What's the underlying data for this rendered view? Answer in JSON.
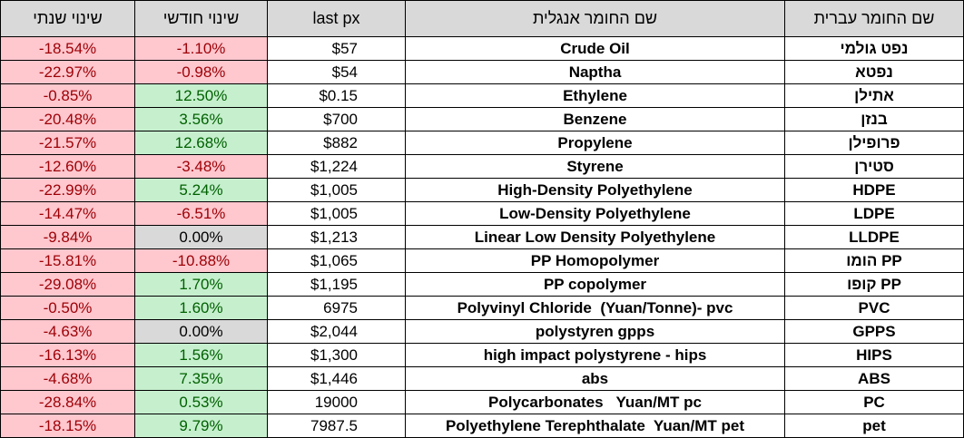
{
  "header": {
    "yearly_change": "שינוי שנתי",
    "monthly_change": "שינוי חודשי",
    "last_px": "last px",
    "english_name": "שם החומר אנגלית",
    "hebrew_name": "שם החומר עברית"
  },
  "colors": {
    "negative_fill": "#ffc7ce",
    "negative_text": "#9c0006",
    "positive_fill": "#c6efce",
    "positive_text": "#006100",
    "neutral_fill": "#d9d9d9",
    "header_fill": "#d9d9d9"
  },
  "rows": [
    {
      "yearly": "-18.54%",
      "monthly": "-1.10%",
      "monthly_tone": "neg",
      "px": "$57",
      "en": "Crude Oil",
      "he": "נפט גולמי"
    },
    {
      "yearly": "-22.97%",
      "monthly": "-0.98%",
      "monthly_tone": "neg",
      "px": "$54",
      "en": "Naptha",
      "he": "נפטא"
    },
    {
      "yearly": "-0.85%",
      "monthly": "12.50%",
      "monthly_tone": "pos",
      "px": "$0.15",
      "en": "Ethylene",
      "he": "אתילן"
    },
    {
      "yearly": "-20.48%",
      "monthly": "3.56%",
      "monthly_tone": "pos",
      "px": "$700",
      "en": "Benzene",
      "he": "בנזן"
    },
    {
      "yearly": "-21.57%",
      "monthly": "12.68%",
      "monthly_tone": "pos",
      "px": "$882",
      "en": "Propylene",
      "he": "פרופילן"
    },
    {
      "yearly": "-12.60%",
      "monthly": "-3.48%",
      "monthly_tone": "neg",
      "px": "$1,224",
      "en": "Styrene",
      "he": "סטירן"
    },
    {
      "yearly": "-22.99%",
      "monthly": "5.24%",
      "monthly_tone": "pos",
      "px": "$1,005",
      "en": "High-Density Polyethylene",
      "he": "HDPE"
    },
    {
      "yearly": "-14.47%",
      "monthly": "-6.51%",
      "monthly_tone": "neg",
      "px": "$1,005",
      "en": "Low-Density Polyethylene",
      "he": "LDPE"
    },
    {
      "yearly": "-9.84%",
      "monthly": "0.00%",
      "monthly_tone": "zero",
      "px": "$1,213",
      "en": "Linear Low Density Polyethylene",
      "he": "LLDPE"
    },
    {
      "yearly": "-15.81%",
      "monthly": "-10.88%",
      "monthly_tone": "neg",
      "px": "$1,065",
      "en": "PP Homopolymer",
      "he": "הומו PP"
    },
    {
      "yearly": "-29.08%",
      "monthly": "1.70%",
      "monthly_tone": "pos",
      "px": "$1,195",
      "en": "PP copolymer",
      "he": "קופו PP"
    },
    {
      "yearly": "-0.50%",
      "monthly": "1.60%",
      "monthly_tone": "pos",
      "px": "6975",
      "en": "Polyvinyl Chloride  (Yuan/Tonne)- pvc",
      "he": "PVC"
    },
    {
      "yearly": "-4.63%",
      "monthly": "0.00%",
      "monthly_tone": "zero",
      "px": "$2,044",
      "en": "polystyren gpps",
      "he": "GPPS"
    },
    {
      "yearly": "-16.13%",
      "monthly": "1.56%",
      "monthly_tone": "pos",
      "px": "$1,300",
      "en": "high impact polystyrene - hips",
      "he": "HIPS"
    },
    {
      "yearly": "-4.68%",
      "monthly": "7.35%",
      "monthly_tone": "pos",
      "px": "$1,446",
      "en": "abs",
      "he": "ABS"
    },
    {
      "yearly": "-28.84%",
      "monthly": "0.53%",
      "monthly_tone": "pos",
      "px": "19000",
      "en": "Polycarbonates   Yuan/MT pc",
      "he": "PC"
    },
    {
      "yearly": "-18.15%",
      "monthly": "9.79%",
      "monthly_tone": "pos",
      "px": "7987.5",
      "en": "Polyethylene Terephthalate  Yuan/MT pet",
      "he": "pet"
    }
  ]
}
